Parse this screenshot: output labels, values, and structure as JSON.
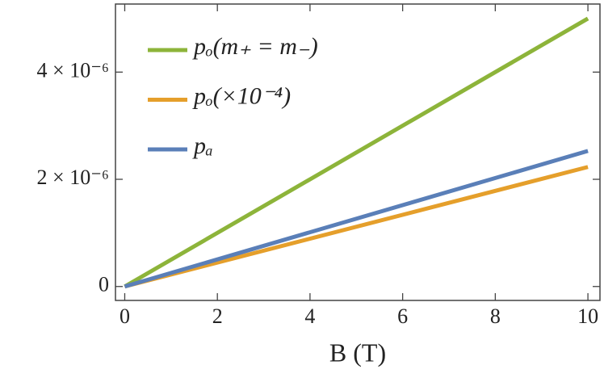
{
  "chart_data": {
    "type": "line",
    "xlabel": "B (T)",
    "x": [
      0,
      10
    ],
    "series": [
      {
        "name": "pₒ(m₊ = m₋)",
        "color": "#8db43a",
        "values": [
          0,
          5e-06
        ]
      },
      {
        "name": "pₒ(×10⁻⁴)",
        "color": "#e59f2b",
        "values": [
          0,
          2.23e-06
        ]
      },
      {
        "name": "pₐ",
        "color": "#5a7fb8",
        "values": [
          0,
          2.53e-06
        ]
      }
    ],
    "xlim": [
      -0.2,
      10.26
    ],
    "ylim": [
      -2.6e-07,
      5.27e-06
    ],
    "xticks": [
      0,
      2,
      4,
      6,
      8,
      10
    ],
    "yticks": [
      0,
      {
        "value": 2e-06,
        "label": "2 × 10⁻⁶"
      },
      {
        "value": 4e-06,
        "label": "4 × 10⁻⁶"
      }
    ],
    "legend": "upper left"
  }
}
